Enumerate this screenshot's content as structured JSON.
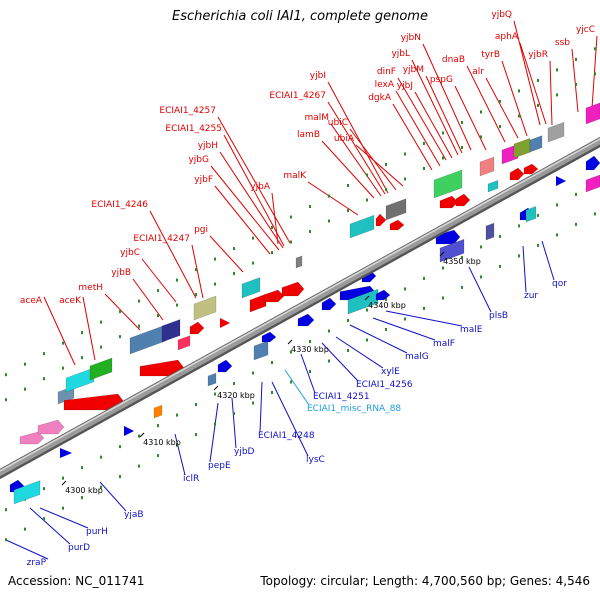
{
  "title": "Escherichia coli IAI1, complete genome",
  "footer": {
    "accession": "Accession: NC_011741",
    "topology": "Topology: circular; Length: 4,700,560 bp; Genes: 4,546"
  },
  "colors": {
    "top_label": "#e00000",
    "bottom_label": "#1010c8",
    "rna_label": "#20a0e0",
    "backbone": "#808080"
  },
  "ticks": [
    "4300 kbp",
    "4310 kbp",
    "4320 kbp",
    "4330 kbp",
    "4340 kbp",
    "4350 kbp"
  ],
  "top_labels": [
    "aceA",
    "aceK",
    "metH",
    "yjbB",
    "yjbC",
    "ECIAI1_4246",
    "ECIAI1_4247",
    "pgi",
    "yjbF",
    "yjbG",
    "yjbH",
    "ECIAI1_4255",
    "ECIAI1_4257",
    "yjbA",
    "malK",
    "lamB",
    "malM",
    "ECIAI1_4267",
    "yjbI",
    "ubiC",
    "ubiA",
    "dgkA",
    "lexA",
    "dinF",
    "yjbJ",
    "yjbL",
    "yjbM",
    "yjbN",
    "pspG",
    "dnaB",
    "alr",
    "tyrB",
    "aphA",
    "yjbQ",
    "yjbR",
    "ssb",
    "yjcC"
  ],
  "bottom_labels": [
    "zraP",
    "purD",
    "purH",
    "yjaB",
    "iclR",
    "pepE",
    "yjbD",
    "ECIAI1_4248",
    "lysC",
    "ECIAI1_misc_RNA_88",
    "ECIAI1_4251",
    "ECIAI1_4256",
    "xylE",
    "malG",
    "malF",
    "malE",
    "plsB",
    "zur",
    "qor"
  ]
}
